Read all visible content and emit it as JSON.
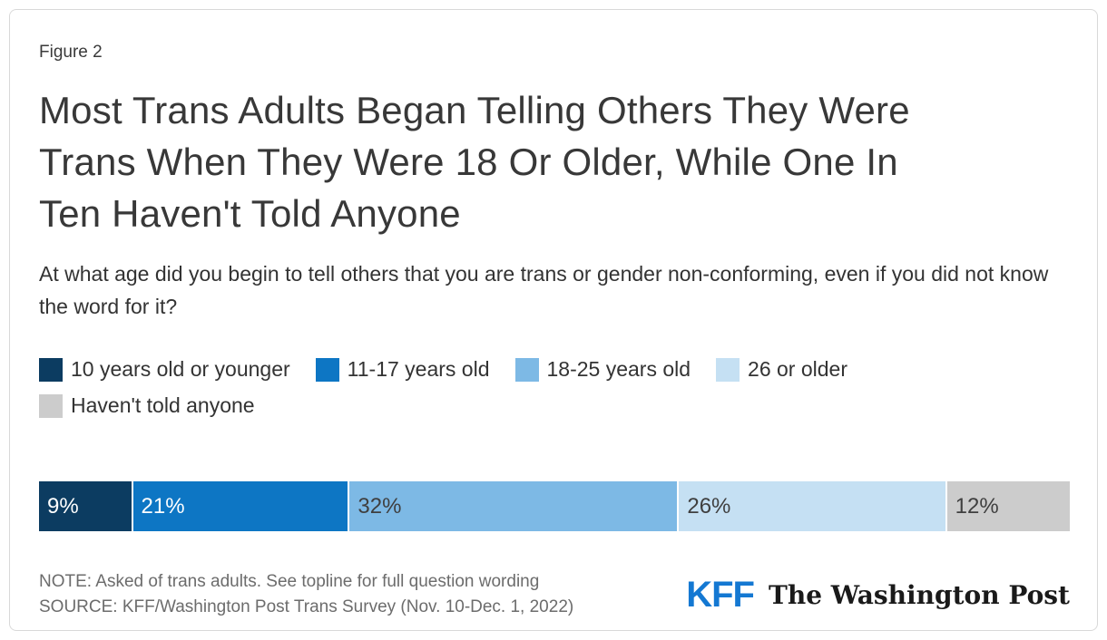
{
  "figure_label": "Figure 2",
  "title_lines": [
    "Most Trans Adults Began Telling Others They Were",
    "Trans When They Were 18 Or Older, While One In",
    "Ten Haven't Told Anyone"
  ],
  "subtitle": "At what age did you begin to tell others that you are trans or gender non-conforming, even if you did not know the word for it?",
  "chart_data": {
    "type": "bar",
    "orientation": "horizontal-stacked",
    "title": "Most Trans Adults Began Telling Others They Were Trans When They Were 18 Or Older, While One In Ten Haven't Told Anyone",
    "question": "At what age did you begin to tell others that you are trans or gender non-conforming, even if you did not know the word for it?",
    "unit": "%",
    "xlim": [
      0,
      100
    ],
    "legend_position": "top",
    "series": [
      {
        "label": "10 years old or younger",
        "value": 9,
        "value_label": "9%",
        "color": "#0c3c61",
        "text_color": "#ffffff"
      },
      {
        "label": "11-17 years old",
        "value": 21,
        "value_label": "21%",
        "color": "#0d76c4",
        "text_color": "#ffffff"
      },
      {
        "label": "18-25 years old",
        "value": 32,
        "value_label": "32%",
        "color": "#7db9e5",
        "text_color": "#3f3f3f"
      },
      {
        "label": "26 or older",
        "value": 26,
        "value_label": "26%",
        "color": "#c5e0f3",
        "text_color": "#3f3f3f"
      },
      {
        "label": "Haven't told anyone",
        "value": 12,
        "value_label": "12%",
        "color": "#cccccc",
        "text_color": "#3f3f3f"
      }
    ]
  },
  "footer": {
    "note": "NOTE: Asked of trans adults. See topline for full question wording",
    "source": "SOURCE: KFF/Washington Post Trans Survey (Nov. 10-Dec. 1, 2022)"
  },
  "logos": {
    "kff": "KFF",
    "washington_post": "The Washington Post"
  },
  "colors": {
    "kff_blue": "#1478d2",
    "card_border": "#d9d9d9",
    "title_text": "#383838",
    "footer_text": "#6c6c6c"
  }
}
